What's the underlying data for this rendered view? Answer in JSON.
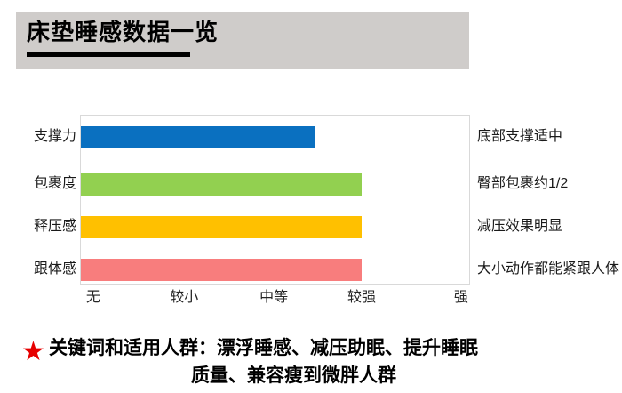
{
  "header": {
    "title": "床垫睡感数据一览"
  },
  "chart_data": {
    "type": "bar",
    "orientation": "horizontal",
    "title": "床垫睡感数据一览",
    "categories": [
      "支撑力",
      "包裹度",
      "释压感",
      "跟体感"
    ],
    "values": [
      2.5,
      3,
      3,
      3
    ],
    "value_axis": {
      "tick_labels": [
        "无",
        "较小",
        "中等",
        "较强",
        "强"
      ],
      "tick_values": [
        0,
        1,
        2,
        3,
        4
      ],
      "max": 4.15
    },
    "annotations": [
      "底部支撑适中",
      "臀部包裹约1/2",
      "减压效果明显",
      "大小动作都能紧跟人体"
    ],
    "bar_colors": [
      "#0A70C0",
      "#92D050",
      "#FFC000",
      "#F87D7D"
    ],
    "grid": false,
    "legend": false
  },
  "footer": {
    "star_icon": "★",
    "line1": "关键词和适用人群：漂浮睡感、减压助眠、提升睡眠",
    "line2": "质量、兼容瘦到微胖人群"
  },
  "colors": {
    "header_bg": "#CFCCCA",
    "title_text": "#000000",
    "underline": "#000000",
    "plot_border": "#D9D9D9",
    "axis_text": "#262626",
    "star_red": "#E60000"
  }
}
